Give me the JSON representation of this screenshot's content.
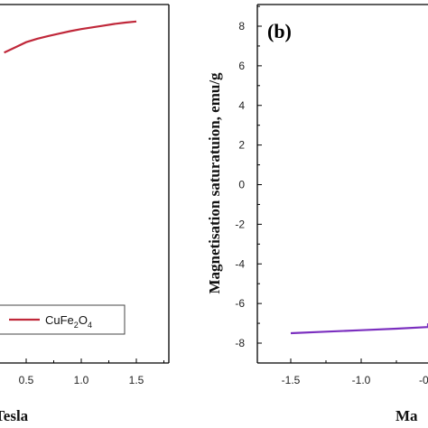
{
  "chart_data": [
    {
      "panel": "a",
      "type": "line",
      "xlabel": "Tesla",
      "ylabel": "",
      "x_ticks": [
        0.5,
        1.0,
        1.5
      ],
      "x_tick_labels": [
        "0.5",
        "1.0",
        "1.5"
      ],
      "xlim": [
        0.3,
        1.6
      ],
      "ylim": [
        0,
        1
      ],
      "legend": {
        "entries": [
          {
            "label_base": "CuFe",
            "label_sub1": "2",
            "label_mid": "O",
            "label_sub2": "4",
            "color": "#c0283a"
          }
        ],
        "placement": "lower-left"
      },
      "series": [
        {
          "color": "#c0283a",
          "x": [
            0.3,
            0.4,
            0.5,
            0.6,
            0.7,
            0.8,
            0.9,
            1.0,
            1.1,
            1.2,
            1.3,
            1.4,
            1.5
          ],
          "y": [
            0.9,
            0.915,
            0.93,
            0.94,
            0.948,
            0.955,
            0.962,
            0.968,
            0.973,
            0.978,
            0.983,
            0.987,
            0.99
          ]
        }
      ]
    },
    {
      "panel": "b",
      "type": "line",
      "panel_label": "(b)",
      "xlabel": "Ma",
      "ylabel": "Magnetisation saturatuion, emu/g",
      "y_ticks": [
        8,
        6,
        4,
        2,
        0,
        -2,
        -4,
        -6,
        -8
      ],
      "y_tick_labels": [
        "8",
        "6",
        "4",
        "2",
        "0",
        "-2",
        "-4",
        "-6",
        "-8"
      ],
      "ylim": [
        -9,
        9
      ],
      "x_tick_labels": [
        "-1.5",
        "-1.0",
        "-0"
      ],
      "xlim": [
        -1.75,
        0
      ],
      "grid": false,
      "series": [
        {
          "color": "#7b2fbf",
          "x": [
            -1.5,
            -1.25,
            -1.0,
            -0.75,
            -0.5,
            -0.25,
            -0.05
          ],
          "y": [
            -7.5,
            -7.42,
            -7.35,
            -7.27,
            -7.19,
            -7.1,
            -7.0
          ]
        }
      ]
    }
  ]
}
